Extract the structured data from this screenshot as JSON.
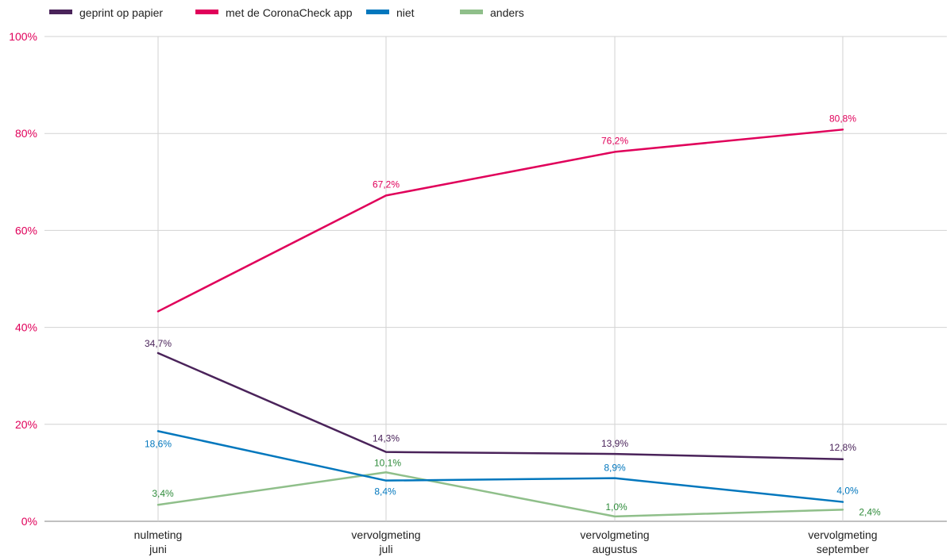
{
  "chart_data": {
    "type": "line",
    "categories": [
      [
        "nulmeting",
        "juni"
      ],
      [
        "vervolgmeting",
        "juli"
      ],
      [
        "vervolgmeting",
        "augustus"
      ],
      [
        "vervolgmeting",
        "september"
      ]
    ],
    "ylim": [
      0,
      100
    ],
    "yticks": [
      "0%",
      "20%",
      "40%",
      "60%",
      "80%",
      "100%"
    ],
    "ytick_values": [
      0,
      20,
      40,
      60,
      80,
      100
    ],
    "grid": "vertical and horizontal",
    "legend_position": "top-left",
    "series": [
      {
        "name": "geprint op papier",
        "color": "#4a235a",
        "values": [
          34.7,
          14.3,
          13.9,
          12.8
        ],
        "labels": [
          "34,7%",
          "14,3%",
          "13,9%",
          "12,8%"
        ]
      },
      {
        "name": "met de CoronaCheck app",
        "color": "#e0005a",
        "values": [
          43.3,
          67.2,
          76.2,
          80.8
        ],
        "labels": [
          "",
          "67,2%",
          "76,2%",
          "80,8%"
        ]
      },
      {
        "name": "niet",
        "color": "#0277bd",
        "values": [
          18.6,
          8.4,
          8.9,
          4.0
        ],
        "labels": [
          "18,6%",
          "8,4%",
          "8,9%",
          "4,0%"
        ]
      },
      {
        "name": "anders",
        "color": "#8fbf8a",
        "label_color": "#2e8b3a",
        "values": [
          3.4,
          10.1,
          1.0,
          2.4
        ],
        "labels": [
          "3,4%",
          "10,1%",
          "1,0%",
          "2,4%"
        ]
      }
    ]
  }
}
